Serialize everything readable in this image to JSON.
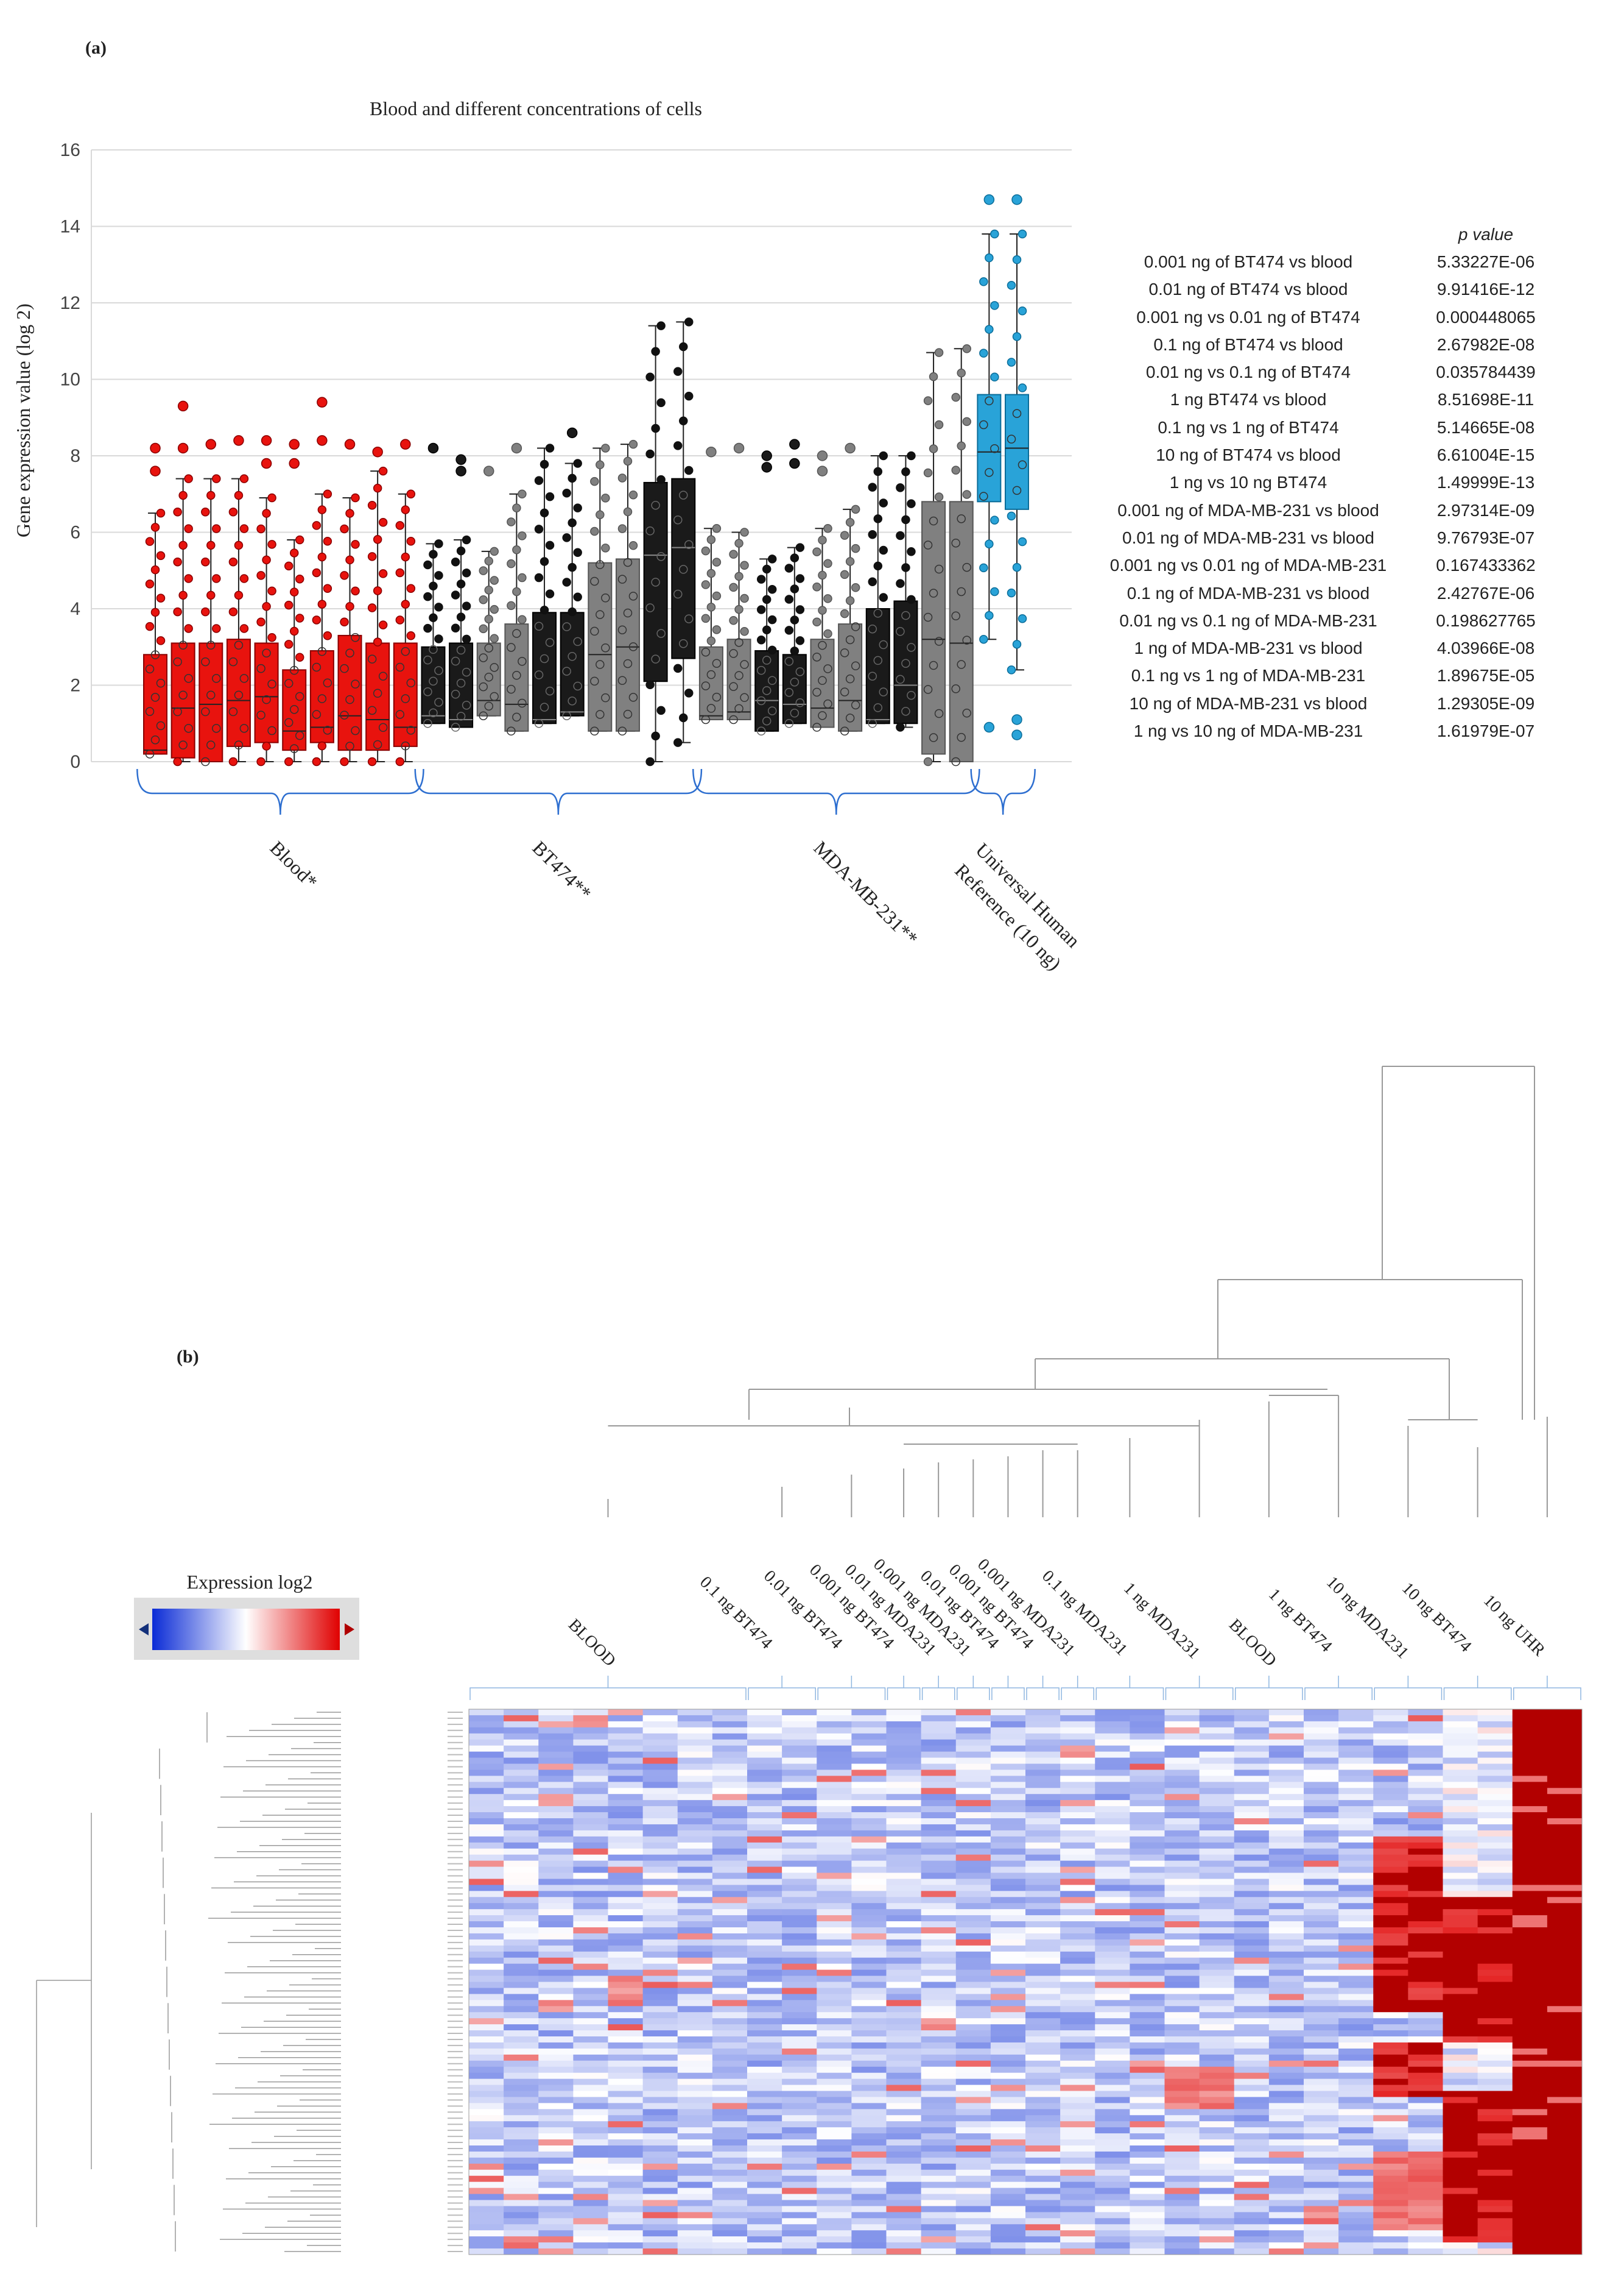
{
  "panel_a_label": "(a)",
  "panel_b_label": "(b)",
  "chart_data": [
    {
      "type": "box",
      "title": "Blood and different concentrations of cells",
      "xlabel": "",
      "ylabel": "Gene expression value (log 2)",
      "ylim": [
        0,
        16
      ],
      "yticks": [
        0,
        2,
        4,
        6,
        8,
        10,
        12,
        14,
        16
      ],
      "grid": true,
      "groups": [
        {
          "name": "Blood*",
          "color": "#e8130e",
          "first_box": 0,
          "last_box": 9
        },
        {
          "name": "BT474**",
          "color": "#1a1a1a",
          "first_box": 10,
          "last_box": 19
        },
        {
          "name": "MDA-MB-231**",
          "color": "#808080",
          "first_box": 20,
          "last_box": 29
        },
        {
          "name": "Universal Human Reference (10 ng)",
          "color": "#29a3d8",
          "first_box": 30,
          "last_box": 31
        }
      ],
      "boxes": [
        {
          "group": 0,
          "min": 0.2,
          "q1": 0.2,
          "median": 0.3,
          "q3": 2.8,
          "max": 6.5,
          "outliers": [
            7.6,
            8.2
          ]
        },
        {
          "group": 0,
          "min": 0.0,
          "q1": 0.1,
          "median": 1.4,
          "q3": 3.1,
          "max": 7.4,
          "outliers": [
            8.2,
            9.3
          ]
        },
        {
          "group": 0,
          "min": 0.0,
          "q1": 0.0,
          "median": 1.5,
          "q3": 3.1,
          "max": 7.4,
          "outliers": [
            8.3
          ]
        },
        {
          "group": 0,
          "min": 0.0,
          "q1": 0.4,
          "median": 1.6,
          "q3": 3.2,
          "max": 7.4,
          "outliers": [
            8.4
          ]
        },
        {
          "group": 0,
          "min": 0.0,
          "q1": 0.5,
          "median": 1.7,
          "q3": 3.1,
          "max": 6.9,
          "outliers": [
            7.8,
            8.4
          ]
        },
        {
          "group": 0,
          "min": 0.0,
          "q1": 0.3,
          "median": 0.8,
          "q3": 2.4,
          "max": 5.8,
          "outliers": [
            7.8,
            8.3
          ]
        },
        {
          "group": 0,
          "min": 0.0,
          "q1": 0.5,
          "median": 0.9,
          "q3": 2.9,
          "max": 7.0,
          "outliers": [
            8.4,
            9.4
          ]
        },
        {
          "group": 0,
          "min": 0.0,
          "q1": 0.3,
          "median": 1.2,
          "q3": 3.3,
          "max": 6.9,
          "outliers": [
            8.3
          ]
        },
        {
          "group": 0,
          "min": 0.0,
          "q1": 0.3,
          "median": 1.1,
          "q3": 3.1,
          "max": 7.6,
          "outliers": [
            8.1
          ]
        },
        {
          "group": 0,
          "min": 0.0,
          "q1": 0.4,
          "median": 0.9,
          "q3": 3.1,
          "max": 7.0,
          "outliers": [
            8.3
          ]
        },
        {
          "group": 1,
          "min": 1.0,
          "q1": 1.0,
          "median": 1.2,
          "q3": 3.0,
          "max": 5.7,
          "outliers": [
            8.2
          ]
        },
        {
          "group": 1,
          "min": 0.9,
          "q1": 0.9,
          "median": 1.1,
          "q3": 3.1,
          "max": 5.8,
          "outliers": [
            7.6,
            7.9
          ]
        },
        {
          "group": 2,
          "min": 1.2,
          "q1": 1.2,
          "median": 1.6,
          "q3": 3.1,
          "max": 5.5,
          "outliers": [
            7.6
          ]
        },
        {
          "group": 2,
          "min": 0.8,
          "q1": 0.8,
          "median": 1.5,
          "q3": 3.6,
          "max": 7.0,
          "outliers": [
            8.2
          ]
        },
        {
          "group": 1,
          "min": 1.0,
          "q1": 1.0,
          "median": 1.1,
          "q3": 3.9,
          "max": 8.2,
          "outliers": []
        },
        {
          "group": 1,
          "min": 1.2,
          "q1": 1.2,
          "median": 1.3,
          "q3": 3.9,
          "max": 7.8,
          "outliers": [
            8.6
          ]
        },
        {
          "group": 2,
          "min": 0.8,
          "q1": 0.8,
          "median": 2.8,
          "q3": 5.2,
          "max": 8.2,
          "outliers": []
        },
        {
          "group": 2,
          "min": 0.8,
          "q1": 0.8,
          "median": 3.0,
          "q3": 5.3,
          "max": 8.3,
          "outliers": []
        },
        {
          "group": 1,
          "min": 0.0,
          "q1": 2.1,
          "median": 5.4,
          "q3": 7.3,
          "max": 11.4,
          "outliers": []
        },
        {
          "group": 1,
          "min": 0.5,
          "q1": 2.7,
          "median": 5.6,
          "q3": 7.4,
          "max": 11.5,
          "outliers": []
        },
        {
          "group": 2,
          "min": 1.1,
          "q1": 1.1,
          "median": 1.2,
          "q3": 3.0,
          "max": 6.1,
          "outliers": [
            8.1
          ]
        },
        {
          "group": 2,
          "min": 1.1,
          "q1": 1.1,
          "median": 1.3,
          "q3": 3.2,
          "max": 6.0,
          "outliers": [
            8.2
          ]
        },
        {
          "group": 1,
          "min": 0.8,
          "q1": 0.8,
          "median": 1.6,
          "q3": 2.9,
          "max": 5.3,
          "outliers": [
            7.7,
            8.0
          ]
        },
        {
          "group": 1,
          "min": 1.0,
          "q1": 1.0,
          "median": 1.5,
          "q3": 2.8,
          "max": 5.6,
          "outliers": [
            7.8,
            8.3
          ]
        },
        {
          "group": 2,
          "min": 0.9,
          "q1": 0.9,
          "median": 1.4,
          "q3": 3.2,
          "max": 6.1,
          "outliers": [
            7.6,
            8.0
          ]
        },
        {
          "group": 2,
          "min": 0.8,
          "q1": 0.8,
          "median": 1.6,
          "q3": 3.6,
          "max": 6.6,
          "outliers": [
            8.2
          ]
        },
        {
          "group": 1,
          "min": 1.0,
          "q1": 1.0,
          "median": 1.1,
          "q3": 4.0,
          "max": 8.0,
          "outliers": []
        },
        {
          "group": 1,
          "min": 0.9,
          "q1": 1.0,
          "median": 2.0,
          "q3": 4.2,
          "max": 8.0,
          "outliers": []
        },
        {
          "group": 2,
          "min": 0.0,
          "q1": 0.2,
          "median": 3.2,
          "q3": 6.8,
          "max": 10.7,
          "outliers": []
        },
        {
          "group": 2,
          "min": 0.0,
          "q1": 0.0,
          "median": 3.1,
          "q3": 6.8,
          "max": 10.8,
          "outliers": []
        },
        {
          "group": 3,
          "min": 3.2,
          "q1": 6.8,
          "median": 8.1,
          "q3": 9.6,
          "max": 13.8,
          "outliers": [
            0.9,
            14.7
          ]
        },
        {
          "group": 3,
          "min": 2.4,
          "q1": 6.6,
          "median": 8.2,
          "q3": 9.6,
          "max": 13.8,
          "outliers": [
            0.7,
            1.1,
            14.7
          ]
        }
      ]
    },
    {
      "type": "heatmap",
      "title": "",
      "legend_title": "Expression log2",
      "color_scale": [
        "#0a2bd6",
        "#ffffff",
        "#e00000"
      ],
      "column_labels": [
        "BLOOD",
        "0.1 ng BT474",
        "0.01 ng BT474",
        "0.001 ng BT474",
        "0.01 ng MDA231",
        "0.001 ng MDA231",
        "0.01 ng BT474",
        "0.001 ng BT474",
        "0.001 ng MDA231",
        "0.1 ng MDA231",
        "1 ng MDA231",
        "BLOOD",
        "1 ng BT474",
        "10 ng MDA231",
        "10 ng BT474",
        "10 ng UHR"
      ],
      "columns_per_label": [
        8,
        2,
        2,
        1,
        1,
        1,
        1,
        1,
        1,
        2,
        2,
        2,
        2,
        2,
        2,
        2
      ],
      "rows": 90,
      "notes": "Low-expression columns (blood, 0.001-1 ng) mostly pale blue; 10 ng MDA231, 10 ng BT474 and 10 ng UHR columns are strongly red in large blocks."
    }
  ],
  "pvalues": {
    "header_label": "p value",
    "rows": [
      {
        "comparison": "0.001  ng of BT474  vs blood",
        "p": "5.33227E-06"
      },
      {
        "comparison": "0.01  ng of BT474  vs blood",
        "p": "9.91416E-12"
      },
      {
        "comparison": "0.001 ng vs 0.01 ng of  BT474",
        "p": "0.000448065"
      },
      {
        "comparison": "0.1 ng of BT474  vs blood",
        "p": "2.67982E-08"
      },
      {
        "comparison": "0.01 ng vs 0.1 ng of BT474",
        "p": "0.035784439"
      },
      {
        "comparison": "1 ng BT474  vs blood",
        "p": "8.51698E-11"
      },
      {
        "comparison": "0.1 ng vs 1 ng of BT474",
        "p": "5.14665E-08"
      },
      {
        "comparison": "10 ng of BT474  vs blood",
        "p": "6.61004E-15"
      },
      {
        "comparison": "1 ng vs 10 ng BT474",
        "p": "1.49999E-13"
      },
      {
        "comparison": "0.001  ng of MDA-MB-231  vs blood",
        "p": "2.97314E-09"
      },
      {
        "comparison": "0.01 ng of MDA-MB-231  vs blood",
        "p": "9.76793E-07"
      },
      {
        "comparison": "0.001 ng vs 0.01 ng of MDA-MB-231",
        "p": "0.167433362"
      },
      {
        "comparison": "0.1 ng of MDA-MB-231  vs blood",
        "p": "2.42767E-06"
      },
      {
        "comparison": "0.01 ng vs 0.1 ng of MDA-MB-231",
        "p": "0.198627765"
      },
      {
        "comparison": "1 ng of MDA-MB-231  vs blood",
        "p": "4.03966E-08"
      },
      {
        "comparison": "0.1 ng vs 1 ng of MDA-MB-231",
        "p": "1.89675E-05"
      },
      {
        "comparison": "10 ng of MDA-MB-231  vs blood",
        "p": "1.29305E-09"
      },
      {
        "comparison": "1 ng vs 10 ng of MDA-MB-231",
        "p": "1.61979E-07"
      }
    ]
  },
  "group_labels": {
    "blood": "Blood*",
    "bt474": "BT474**",
    "mda": "MDA-MB-231**",
    "uhr_line1": "Universal Human",
    "uhr_line2": "Reference (10 ng)"
  }
}
